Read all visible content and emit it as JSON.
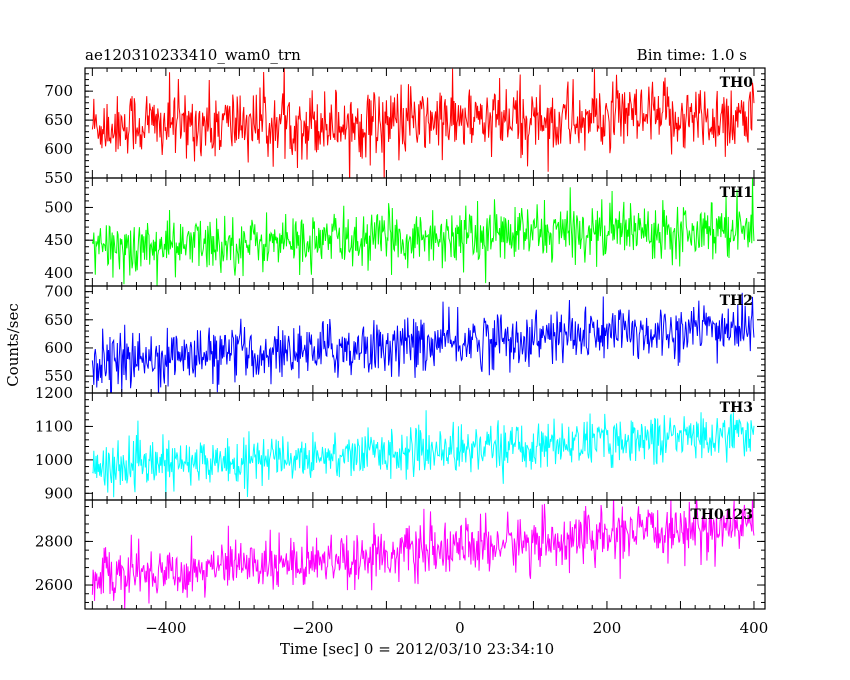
{
  "header": {
    "left_title": "ae120310233410_wam0_trn",
    "right_title": "Bin time: 1.0 s"
  },
  "chart_data": {
    "type": "line",
    "xlabel": "Time [sec] 0 = 2012/03/10 23:34:10",
    "ylabel": "Counts/sec",
    "xlim": [
      -510,
      415
    ],
    "x_ticks": [
      -400,
      -200,
      0,
      200,
      400
    ],
    "x_tick_labels": [
      "−400",
      "−200",
      "0",
      "200",
      "400"
    ],
    "x_range": [
      -500,
      400
    ],
    "bin_time": 1.0,
    "panels": [
      {
        "name": "TH0",
        "color": "#ff0000",
        "ylim": [
          550,
          740
        ],
        "y_ticks": [
          550,
          600,
          650,
          700
        ],
        "trend_start": 640,
        "trend_end": 655,
        "noise_amplitude": 40
      },
      {
        "name": "TH1",
        "color": "#00ff00",
        "ylim": [
          380,
          545
        ],
        "y_ticks": [
          400,
          450,
          500
        ],
        "trend_start": 437,
        "trend_end": 472,
        "noise_amplitude": 28
      },
      {
        "name": "TH2",
        "color": "#0000ff",
        "ylim": [
          520,
          710
        ],
        "y_ticks": [
          550,
          600,
          650,
          700
        ],
        "trend_start": 575,
        "trend_end": 638,
        "noise_amplitude": 32
      },
      {
        "name": "TH3",
        "color": "#00ffff",
        "ylim": [
          880,
          1200
        ],
        "y_ticks": [
          900,
          1000,
          1100,
          1200
        ],
        "trend_start": 975,
        "trend_end": 1080,
        "noise_amplitude": 45
      },
      {
        "name": "TH0123",
        "color": "#ff00ff",
        "ylim": [
          2490,
          2990
        ],
        "y_ticks": [
          2600,
          2800
        ],
        "trend_start": 2640,
        "trend_end": 2875,
        "noise_amplitude": 80
      }
    ]
  }
}
